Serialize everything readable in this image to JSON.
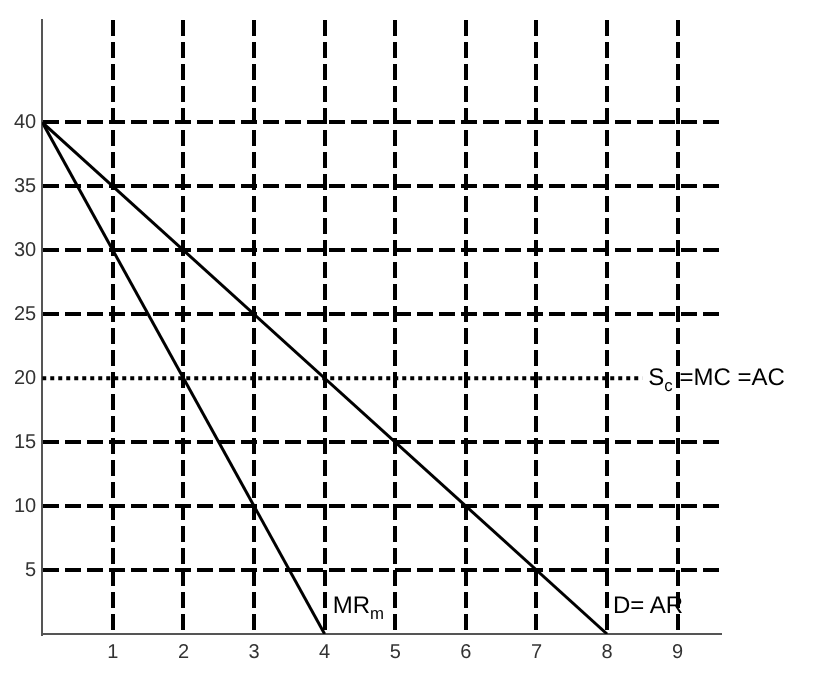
{
  "chart_data": {
    "type": "line",
    "series": [
      {
        "name": "D= AR",
        "color": "#000000",
        "x": [
          0,
          8
        ],
        "values": [
          40,
          0
        ]
      },
      {
        "name": "MR$_{m}$",
        "color": "#000000",
        "x": [
          0,
          4
        ],
        "values": [
          40,
          0
        ]
      },
      {
        "name": "S$_{c}$ =MC =AC",
        "color": "#000000",
        "x": [
          0,
          8.5
        ],
        "values": [
          20,
          20
        ],
        "line_style": "dotted"
      }
    ],
    "xlim": [
      0,
      9.6
    ],
    "ylim": [
      0,
      48
    ],
    "xticks": [
      1,
      2,
      3,
      4,
      5,
      6,
      7,
      8,
      9
    ],
    "yticks": [
      5,
      10,
      15,
      20,
      25,
      30,
      35,
      40
    ],
    "grid": true,
    "legend": false,
    "marker": "none",
    "line_style": "solid"
  }
}
